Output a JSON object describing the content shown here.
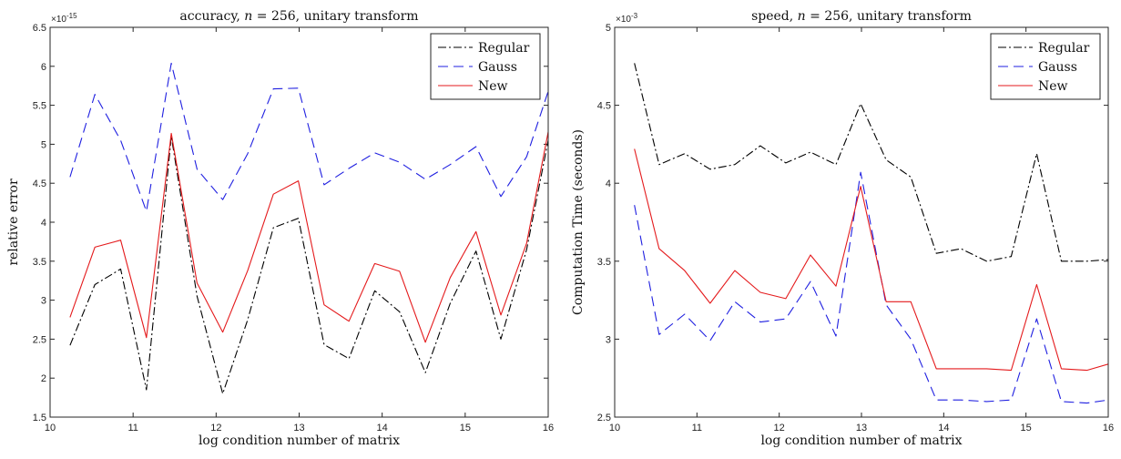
{
  "chart_data": [
    {
      "type": "line",
      "title": "accuracy, n = 256, unitary transform",
      "title_parts": [
        "accuracy, ",
        "n",
        " = 256, unitary transform"
      ],
      "xlabel": "log condition number of matrix",
      "ylabel": "relative error",
      "exponent_label": "×10",
      "exponent_power": "-15",
      "xlim": [
        10,
        16
      ],
      "ylim": [
        1.5,
        6.5
      ],
      "xticks": [
        "10",
        "11",
        "12",
        "13",
        "14",
        "15",
        "16"
      ],
      "yticks": [
        "1.5",
        "2",
        "2.5",
        "3",
        "3.5",
        "4",
        "4.5",
        "5",
        "5.5",
        "6",
        "6.5"
      ],
      "legend_position": "top-right",
      "x": [
        10.24,
        10.54,
        10.85,
        11.16,
        11.46,
        11.77,
        12.08,
        12.38,
        12.69,
        12.99,
        13.3,
        13.6,
        13.91,
        14.21,
        14.52,
        14.82,
        15.13,
        15.43,
        15.74,
        16.0
      ],
      "series": [
        {
          "name": "Regular",
          "color": "#000000",
          "dash": "dashdot",
          "values": [
            2.42,
            3.2,
            3.4,
            1.85,
            5.1,
            3.05,
            1.8,
            2.75,
            3.93,
            4.05,
            2.43,
            2.25,
            3.12,
            2.85,
            2.07,
            2.96,
            3.63,
            2.5,
            3.65,
            5.05
          ]
        },
        {
          "name": "Gauss",
          "color": "#1f1fe0",
          "dash": "dashed",
          "values": [
            4.58,
            5.64,
            5.05,
            4.14,
            6.04,
            4.68,
            4.29,
            4.88,
            5.71,
            5.72,
            4.48,
            4.69,
            4.89,
            4.77,
            4.55,
            4.74,
            4.97,
            4.33,
            4.84,
            5.68
          ]
        },
        {
          "name": "New",
          "color": "#e41a1c",
          "dash": "solid",
          "values": [
            2.78,
            3.68,
            3.77,
            2.52,
            5.14,
            3.22,
            2.59,
            3.38,
            4.36,
            4.53,
            2.94,
            2.73,
            3.47,
            3.37,
            2.46,
            3.29,
            3.88,
            2.81,
            3.73,
            5.16
          ]
        }
      ]
    },
    {
      "type": "line",
      "title": "speed, n = 256, unitary transform",
      "title_parts": [
        "speed, ",
        "n",
        " = 256, unitary transform"
      ],
      "xlabel": "log condition number of matrix",
      "ylabel": "Computation Time (seconds)",
      "exponent_label": "×10",
      "exponent_power": "-3",
      "xlim": [
        10,
        16
      ],
      "ylim": [
        2.5,
        5
      ],
      "xticks": [
        "10",
        "11",
        "12",
        "13",
        "14",
        "15",
        "16"
      ],
      "yticks": [
        "2.5",
        "3",
        "3.5",
        "4",
        "4.5",
        "5"
      ],
      "legend_position": "top-right",
      "x": [
        10.24,
        10.54,
        10.85,
        11.16,
        11.46,
        11.77,
        12.08,
        12.38,
        12.69,
        12.99,
        13.3,
        13.6,
        13.91,
        14.21,
        14.52,
        14.82,
        15.13,
        15.43,
        15.74,
        16.0
      ],
      "series": [
        {
          "name": "Regular",
          "color": "#000000",
          "dash": "dashdot",
          "values": [
            4.77,
            4.12,
            4.19,
            4.09,
            4.12,
            4.24,
            4.13,
            4.2,
            4.12,
            4.51,
            4.15,
            4.04,
            3.55,
            3.58,
            3.5,
            3.53,
            4.19,
            3.5,
            3.5,
            3.51
          ]
        },
        {
          "name": "Gauss",
          "color": "#1f1fe0",
          "dash": "dashed",
          "values": [
            3.86,
            3.03,
            3.16,
            2.99,
            3.24,
            3.11,
            3.13,
            3.37,
            3.02,
            4.07,
            3.22,
            3.0,
            2.61,
            2.61,
            2.6,
            2.61,
            3.13,
            2.6,
            2.59,
            2.61
          ]
        },
        {
          "name": "New",
          "color": "#e41a1c",
          "dash": "solid",
          "values": [
            4.22,
            3.58,
            3.44,
            3.23,
            3.44,
            3.3,
            3.26,
            3.54,
            3.34,
            3.98,
            3.24,
            3.24,
            2.81,
            2.81,
            2.81,
            2.8,
            3.35,
            2.81,
            2.8,
            2.84
          ]
        }
      ]
    }
  ]
}
